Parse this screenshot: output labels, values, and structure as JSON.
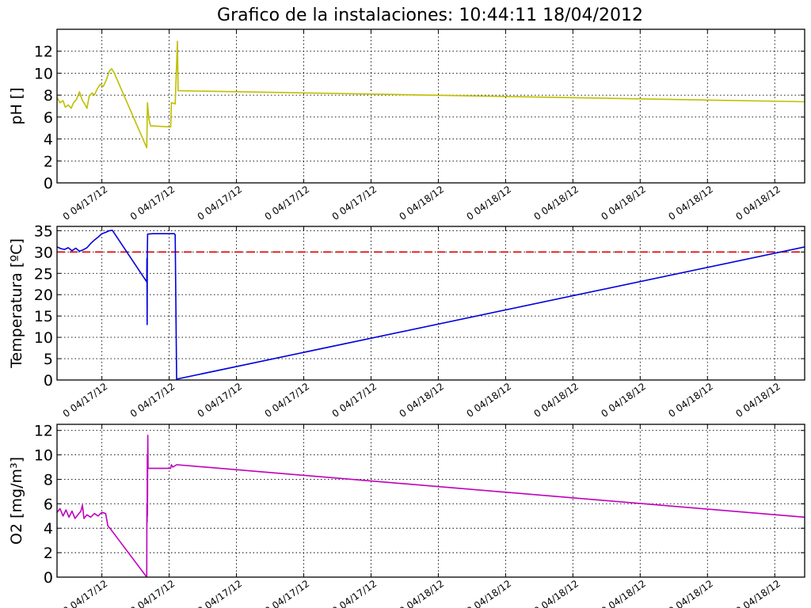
{
  "title": "Grafico de la instalaciones: 10:44:11 18/04/2012",
  "chart_data": [
    {
      "type": "line",
      "ylabel": "pH []",
      "xlabel": "",
      "ylim": [
        0,
        14
      ],
      "yticks": [
        0,
        2,
        4,
        6,
        8,
        10,
        12
      ],
      "xlim": [
        0,
        1
      ],
      "x_tick_positions": [
        0.06,
        0.15,
        0.24,
        0.33,
        0.42,
        0.51,
        0.6,
        0.69,
        0.78,
        0.87,
        0.96
      ],
      "x_tick_labels": [
        "0 04/17/12",
        "0 04/17/12",
        "0 04/17/12",
        "0 04/17/12",
        "0 04/17/12",
        "0 04/18/12",
        "0 04/18/12",
        "0 04/18/12",
        "0 04/18/12",
        "0 04/18/12",
        "0 04/18/12"
      ],
      "grid": true,
      "series": [
        {
          "color": "#bfbf00",
          "points": [
            [
              0.0,
              7.8
            ],
            [
              0.004,
              7.3
            ],
            [
              0.008,
              7.5
            ],
            [
              0.011,
              6.9
            ],
            [
              0.015,
              7.1
            ],
            [
              0.019,
              6.8
            ],
            [
              0.022,
              7.3
            ],
            [
              0.026,
              7.6
            ],
            [
              0.03,
              8.3
            ],
            [
              0.034,
              7.5
            ],
            [
              0.037,
              7.2
            ],
            [
              0.04,
              6.8
            ],
            [
              0.043,
              7.9
            ],
            [
              0.047,
              8.2
            ],
            [
              0.05,
              8.0
            ],
            [
              0.054,
              8.6
            ],
            [
              0.058,
              9.0
            ],
            [
              0.062,
              8.8
            ],
            [
              0.066,
              9.4
            ],
            [
              0.07,
              10.2
            ],
            [
              0.073,
              10.4
            ],
            [
              0.076,
              10.1
            ],
            [
              0.12,
              3.2
            ],
            [
              0.121,
              7.3
            ],
            [
              0.123,
              5.8
            ],
            [
              0.125,
              5.2
            ],
            [
              0.152,
              5.1
            ],
            [
              0.153,
              7.3
            ],
            [
              0.158,
              7.2
            ],
            [
              0.161,
              12.9
            ],
            [
              0.162,
              8.4
            ],
            [
              1.0,
              7.4
            ]
          ]
        }
      ]
    },
    {
      "type": "line",
      "ylabel": "Temperatura [ºC]",
      "xlabel": "",
      "ylim": [
        0,
        36
      ],
      "yticks": [
        0,
        5,
        10,
        15,
        20,
        25,
        30,
        35
      ],
      "xlim": [
        0,
        1
      ],
      "x_tick_positions": [
        0.06,
        0.15,
        0.24,
        0.33,
        0.42,
        0.51,
        0.6,
        0.69,
        0.78,
        0.87,
        0.96
      ],
      "x_tick_labels": [
        "0 04/17/12",
        "0 04/17/12",
        "0 04/17/12",
        "0 04/17/12",
        "0 04/17/12",
        "0 04/18/12",
        "0 04/18/12",
        "0 04/18/12",
        "0 04/18/12",
        "0 04/18/12",
        "0 04/18/12"
      ],
      "grid": true,
      "reference_line": {
        "value": 30,
        "color": "#dd0000",
        "style": "dashed"
      },
      "series": [
        {
          "color": "#0000dd",
          "points": [
            [
              0.0,
              31.2
            ],
            [
              0.005,
              30.8
            ],
            [
              0.01,
              30.6
            ],
            [
              0.015,
              31.0
            ],
            [
              0.02,
              30.3
            ],
            [
              0.025,
              30.9
            ],
            [
              0.03,
              30.2
            ],
            [
              0.035,
              30.5
            ],
            [
              0.04,
              31.0
            ],
            [
              0.045,
              32.0
            ],
            [
              0.05,
              32.8
            ],
            [
              0.055,
              33.5
            ],
            [
              0.06,
              34.3
            ],
            [
              0.065,
              34.6
            ],
            [
              0.07,
              35.0
            ],
            [
              0.074,
              35.1
            ],
            [
              0.12,
              23.0
            ],
            [
              0.1202,
              28.5
            ],
            [
              0.1205,
              13.0
            ],
            [
              0.1208,
              29.5
            ],
            [
              0.1212,
              34.2
            ],
            [
              0.128,
              34.3
            ],
            [
              0.157,
              34.3
            ],
            [
              0.158,
              34.0
            ],
            [
              0.16,
              0.2
            ],
            [
              1.0,
              31.2
            ]
          ]
        }
      ]
    },
    {
      "type": "line",
      "ylabel": "O2 [mg/m³]",
      "xlabel": "",
      "ylim": [
        0,
        12.5
      ],
      "yticks": [
        0,
        2,
        4,
        6,
        8,
        10,
        12
      ],
      "xlim": [
        0,
        1
      ],
      "x_tick_positions": [
        0.06,
        0.15,
        0.24,
        0.33,
        0.42,
        0.51,
        0.6,
        0.69,
        0.78,
        0.87,
        0.96
      ],
      "x_tick_labels": [
        "0 04/17/12",
        "0 04/17/12",
        "0 04/17/12",
        "0 04/17/12",
        "0 04/17/12",
        "0 04/18/12",
        "0 04/18/12",
        "0 04/18/12",
        "0 04/18/12",
        "0 04/18/12",
        "0 04/18/12"
      ],
      "grid": true,
      "series": [
        {
          "color": "#bf00bf",
          "points": [
            [
              0.0,
              5.3
            ],
            [
              0.004,
              5.6
            ],
            [
              0.008,
              5.0
            ],
            [
              0.012,
              5.5
            ],
            [
              0.016,
              4.9
            ],
            [
              0.02,
              5.4
            ],
            [
              0.024,
              4.8
            ],
            [
              0.028,
              5.1
            ],
            [
              0.032,
              5.4
            ],
            [
              0.034,
              5.9
            ],
            [
              0.036,
              4.8
            ],
            [
              0.04,
              5.1
            ],
            [
              0.045,
              4.9
            ],
            [
              0.05,
              5.2
            ],
            [
              0.055,
              5.0
            ],
            [
              0.06,
              5.3
            ],
            [
              0.065,
              5.2
            ],
            [
              0.068,
              4.2
            ],
            [
              0.072,
              3.9
            ],
            [
              0.12,
              0.0
            ],
            [
              0.1202,
              6.0
            ],
            [
              0.1205,
              4.5
            ],
            [
              0.1208,
              10.0
            ],
            [
              0.121,
              5.0
            ],
            [
              0.1214,
              11.6
            ],
            [
              0.1218,
              8.9
            ],
            [
              0.152,
              8.9
            ],
            [
              0.153,
              9.2
            ],
            [
              0.155,
              9.0
            ],
            [
              0.16,
              9.2
            ],
            [
              1.0,
              4.9
            ]
          ]
        }
      ]
    }
  ]
}
